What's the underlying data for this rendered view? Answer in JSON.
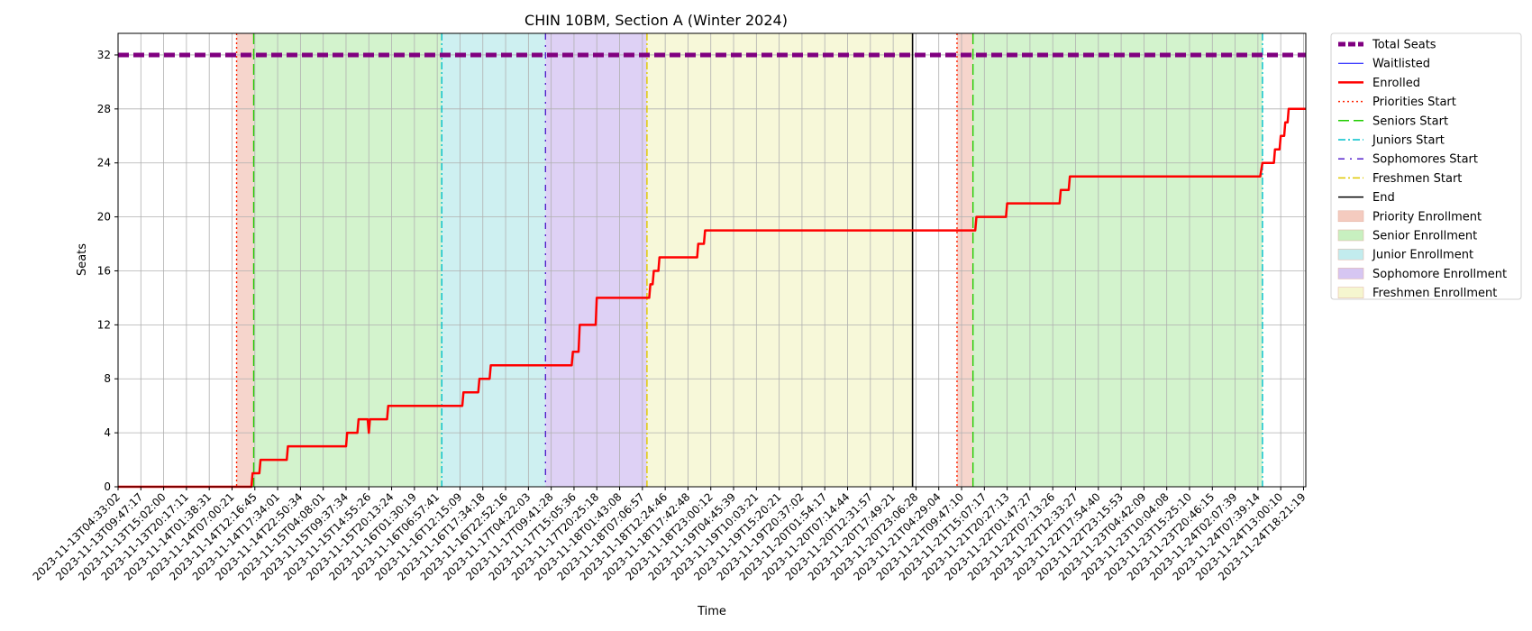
{
  "chart_data": {
    "type": "line",
    "title": "CHIN 10BM, Section A (Winter 2024)",
    "xlabel": "Time",
    "ylabel": "Seats",
    "ylim": [
      0,
      33.6
    ],
    "yticks": [
      0,
      4,
      8,
      12,
      16,
      20,
      24,
      28,
      32
    ],
    "x_tick_labels": [
      "2023-11-13T04:33:02",
      "2023-11-13T09:47:17",
      "2023-11-13T15:02:00",
      "2023-11-13T20:17:11",
      "2023-11-14T01:38:31",
      "2023-11-14T07:00:21",
      "2023-11-14T12:16:45",
      "2023-11-14T17:34:01",
      "2023-11-14T22:50:34",
      "2023-11-15T04:08:01",
      "2023-11-15T09:37:34",
      "2023-11-15T14:55:26",
      "2023-11-15T20:13:24",
      "2023-11-16T01:30:19",
      "2023-11-16T06:57:41",
      "2023-11-16T12:15:09",
      "2023-11-16T17:34:18",
      "2023-11-16T22:52:16",
      "2023-11-17T04:22:03",
      "2023-11-17T09:41:28",
      "2023-11-17T15:05:36",
      "2023-11-17T20:25:18",
      "2023-11-18T01:43:08",
      "2023-11-18T07:06:57",
      "2023-11-18T12:24:46",
      "2023-11-18T17:42:48",
      "2023-11-18T23:00:12",
      "2023-11-19T04:45:39",
      "2023-11-19T10:03:21",
      "2023-11-19T15:20:21",
      "2023-11-19T20:37:02",
      "2023-11-20T01:54:17",
      "2023-11-20T07:14:44",
      "2023-11-20T12:31:57",
      "2023-11-20T17:49:21",
      "2023-11-20T23:06:28",
      "2023-11-21T04:29:04",
      "2023-11-21T09:47:10",
      "2023-11-21T15:07:17",
      "2023-11-21T20:27:13",
      "2023-11-22T01:47:27",
      "2023-11-22T07:13:26",
      "2023-11-22T12:33:27",
      "2023-11-22T17:54:40",
      "2023-11-22T23:15:53",
      "2023-11-23T04:42:09",
      "2023-11-23T10:04:08",
      "2023-11-23T15:25:10",
      "2023-11-23T20:46:15",
      "2023-11-24T02:07:39",
      "2023-11-24T07:39:14",
      "2023-11-24T13:00:10",
      "2023-11-24T18:21:19"
    ],
    "x_range_index": [
      0,
      52.1
    ],
    "total_seats": 32,
    "series": [
      {
        "name": "Total Seats",
        "color": "#800080",
        "style": "dashed",
        "width": 5,
        "points": [
          [
            0,
            32
          ],
          [
            52.1,
            32
          ]
        ]
      },
      {
        "name": "Waitlisted",
        "color": "#0000ff",
        "style": "solid",
        "width": 1,
        "points": [
          [
            0,
            0
          ],
          [
            52.1,
            0
          ]
        ]
      },
      {
        "name": "Enrolled",
        "color": "#ff0000",
        "style": "solid",
        "width": 2.5,
        "points": [
          [
            0,
            0
          ],
          [
            5.85,
            0
          ],
          [
            5.9,
            1
          ],
          [
            6.2,
            1
          ],
          [
            6.25,
            2
          ],
          [
            7.4,
            2
          ],
          [
            7.45,
            3
          ],
          [
            10.0,
            3
          ],
          [
            10.05,
            4
          ],
          [
            10.5,
            4
          ],
          [
            10.55,
            5
          ],
          [
            10.95,
            5
          ],
          [
            11.0,
            4
          ],
          [
            11.05,
            5
          ],
          [
            11.8,
            5
          ],
          [
            11.85,
            6
          ],
          [
            15.1,
            6
          ],
          [
            15.15,
            7
          ],
          [
            15.8,
            7
          ],
          [
            15.85,
            8
          ],
          [
            16.3,
            8
          ],
          [
            16.35,
            9
          ],
          [
            19.9,
            9
          ],
          [
            19.95,
            10
          ],
          [
            20.2,
            10
          ],
          [
            20.25,
            12
          ],
          [
            20.95,
            12
          ],
          [
            21.0,
            14
          ],
          [
            23.3,
            14
          ],
          [
            23.35,
            15
          ],
          [
            23.45,
            15
          ],
          [
            23.5,
            16
          ],
          [
            23.7,
            16
          ],
          [
            23.75,
            17
          ],
          [
            25.4,
            17
          ],
          [
            25.45,
            18
          ],
          [
            25.7,
            18
          ],
          [
            25.75,
            19
          ],
          [
            37.6,
            19
          ],
          [
            37.65,
            20
          ],
          [
            38.95,
            20
          ],
          [
            39.0,
            21
          ],
          [
            41.3,
            21
          ],
          [
            41.35,
            22
          ],
          [
            41.7,
            22
          ],
          [
            41.75,
            23
          ],
          [
            50.1,
            23
          ],
          [
            50.2,
            24
          ],
          [
            50.7,
            24
          ],
          [
            50.75,
            25
          ],
          [
            50.95,
            25
          ],
          [
            51.0,
            26
          ],
          [
            51.15,
            26
          ],
          [
            51.2,
            27
          ],
          [
            51.3,
            27
          ],
          [
            51.35,
            28
          ],
          [
            52.1,
            28
          ]
        ]
      }
    ],
    "phase_lines": [
      {
        "name": "Priorities Start",
        "color": "#ff2200",
        "style": "dotted",
        "x": [
          5.2,
          36.8
        ]
      },
      {
        "name": "Seniors Start",
        "color": "#22cc00",
        "style": "dashed",
        "x": [
          5.95,
          37.5
        ]
      },
      {
        "name": "Juniors Start",
        "color": "#00c0cc",
        "style": "dashdot",
        "x": [
          14.2,
          50.2
        ]
      },
      {
        "name": "Sophomores Start",
        "color": "#5522cc",
        "style": "dashdot-dense",
        "x": [
          18.75
        ]
      },
      {
        "name": "Freshmen Start",
        "color": "#e0c800",
        "style": "dashdot",
        "x": [
          23.2
        ]
      },
      {
        "name": "End",
        "color": "#000000",
        "style": "solid",
        "x": [
          34.85
        ]
      }
    ],
    "phase_spans": [
      {
        "name": "Priority Enrollment",
        "color": "#f4cbbf",
        "ranges": [
          [
            5.2,
            5.95
          ],
          [
            36.8,
            37.5
          ]
        ]
      },
      {
        "name": "Senior Enrollment",
        "color": "#c8f0c0",
        "ranges": [
          [
            5.95,
            14.2
          ],
          [
            37.5,
            50.2
          ]
        ]
      },
      {
        "name": "Junior Enrollment",
        "color": "#c2ecee",
        "ranges": [
          [
            14.2,
            18.75
          ]
        ]
      },
      {
        "name": "Sophomore Enrollment",
        "color": "#d6c6f2",
        "ranges": [
          [
            18.75,
            23.2
          ]
        ]
      },
      {
        "name": "Freshmen Enrollment",
        "color": "#f5f6cf",
        "ranges": [
          [
            23.2,
            34.85
          ]
        ]
      }
    ],
    "legend_position": "outside-right",
    "grid": true
  }
}
